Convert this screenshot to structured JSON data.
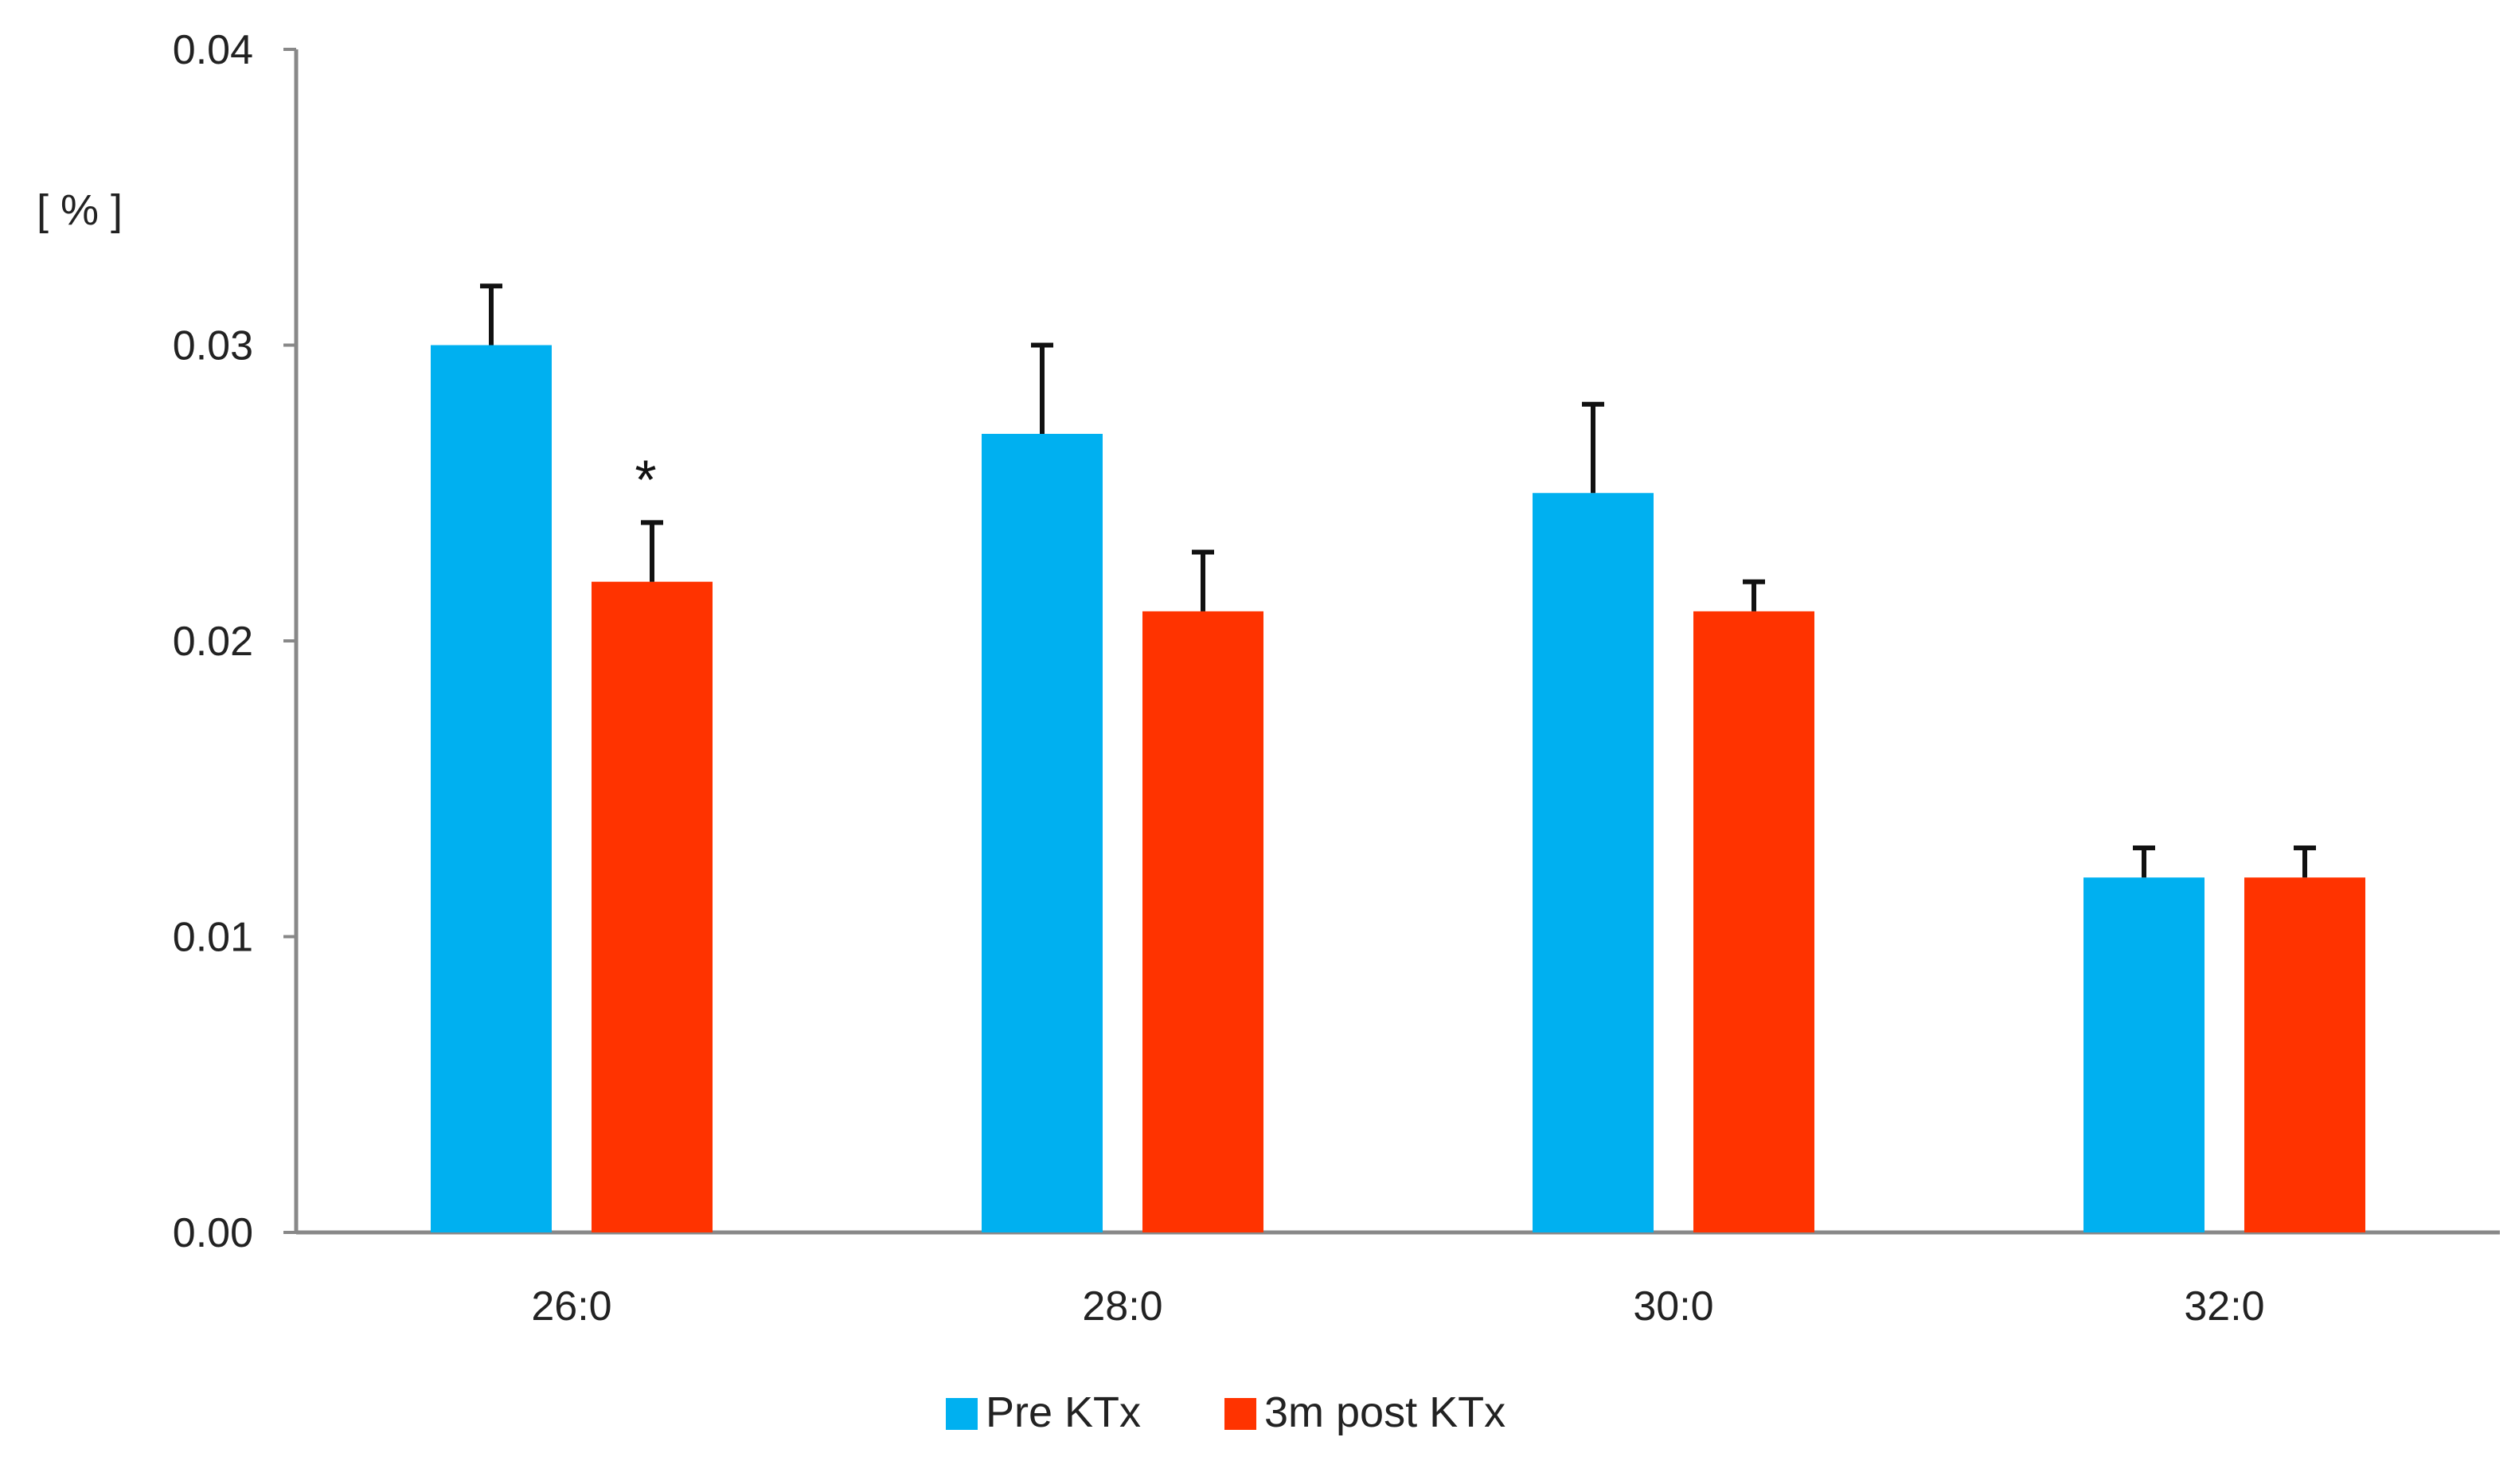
{
  "chart_data": {
    "type": "bar",
    "title": "",
    "xlabel": "",
    "ylabel": "[ % ]",
    "ylim": [
      0,
      0.04
    ],
    "yticks": [
      "0.00",
      "0.01",
      "0.02",
      "0.03",
      "0.04"
    ],
    "ytick_values": [
      0,
      0.01,
      0.02,
      0.03,
      0.04
    ],
    "categories": [
      "26:0",
      "28:0",
      "30:0",
      "32:0"
    ],
    "series": [
      {
        "name": "Pre KTx",
        "color": "#00b0f0",
        "values": [
          0.03,
          0.027,
          0.025,
          0.012
        ],
        "errors": [
          0.002,
          0.003,
          0.003,
          0.001
        ]
      },
      {
        "name": "3m post KTx",
        "color": "#ff3300",
        "values": [
          0.022,
          0.021,
          0.021,
          0.012
        ],
        "errors": [
          0.002,
          0.002,
          0.001,
          0.001
        ]
      }
    ],
    "annotations": [
      {
        "text": "*",
        "category": "26:0",
        "series": "3m post KTx"
      }
    ],
    "legend_position": "bottom-center",
    "grid": false
  }
}
